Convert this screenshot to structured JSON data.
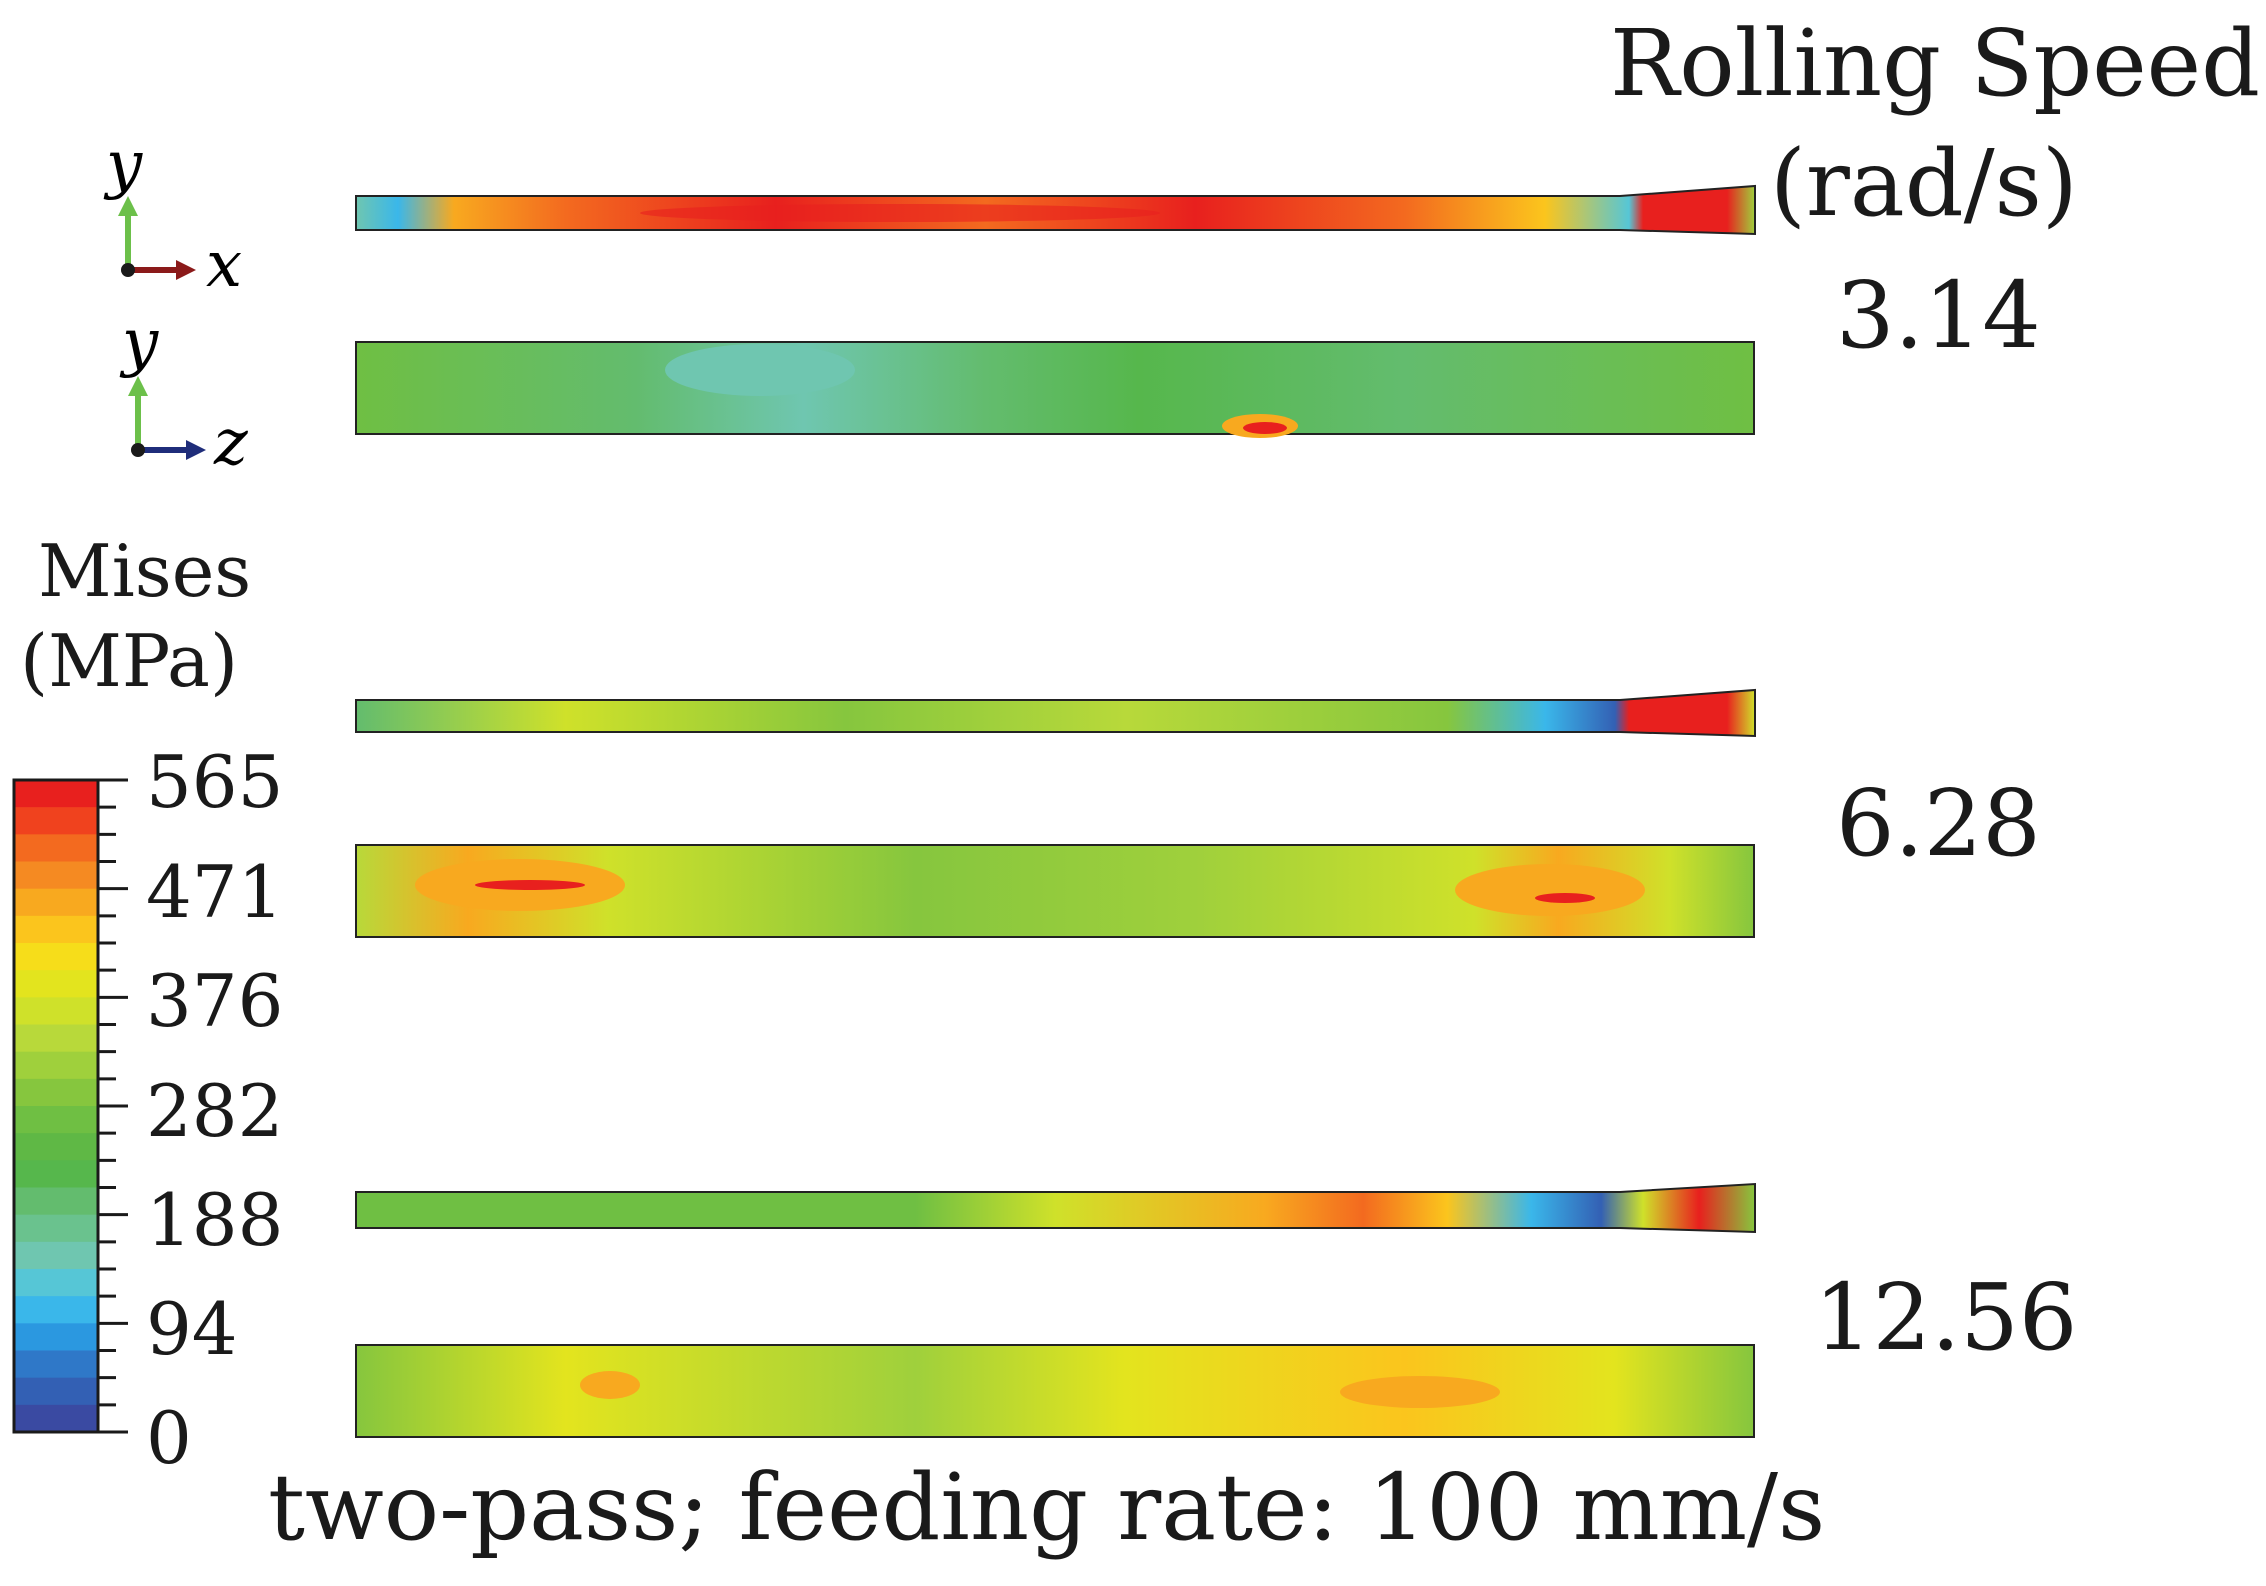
{
  "title": {
    "line1": "Rolling Speed",
    "line2": "(rad/s)"
  },
  "axes": [
    {
      "name": "xy",
      "vertical": "y",
      "horizontal": "x",
      "vertical_color": "#6cc04a",
      "horizontal_color": "#8b1a1a"
    },
    {
      "name": "zy",
      "vertical": "y",
      "horizontal": "z",
      "vertical_color": "#6cc04a",
      "horizontal_color": "#1f2d7a"
    }
  ],
  "legend": {
    "title_line1": "Mises",
    "title_line2": "(MPa)",
    "ticks": [
      "565",
      "471",
      "376",
      "282",
      "188",
      "94",
      "0"
    ],
    "colors": [
      "#e8201e",
      "#f0421e",
      "#f36a1f",
      "#f58a22",
      "#f8a91f",
      "#fbc51d",
      "#f6dd1a",
      "#e3e41e",
      "#cfe12a",
      "#b8d93a",
      "#9fd03c",
      "#86c63e",
      "#6fbf43",
      "#5fb845",
      "#56b74c",
      "#63bc6e",
      "#6ac28e",
      "#6fc6b0",
      "#56c6d6",
      "#3ab7ea",
      "#2b98e0",
      "#2f78c8",
      "#3360b4",
      "#3a4aa2"
    ]
  },
  "cases": [
    {
      "speed": "3.14",
      "max_color": "#e8201e"
    },
    {
      "speed": "6.28",
      "max_color": "#e8201e"
    },
    {
      "speed": "12.56",
      "max_color": "#e8201e"
    }
  ],
  "footer": "two-pass; feeding rate: 100 mm/s"
}
